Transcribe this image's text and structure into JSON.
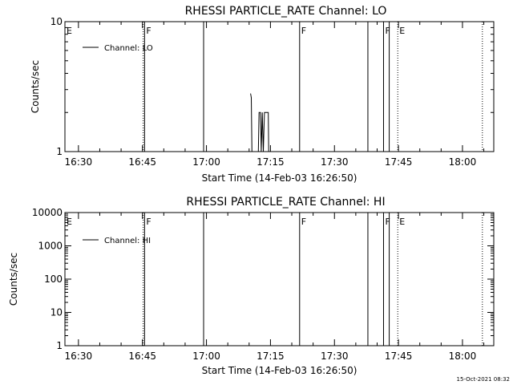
{
  "footer": {
    "timestamp": "15-Oct-2021 08:32"
  },
  "chart_data": [
    {
      "type": "line",
      "title": "RHESSI PARTICLE_RATE Channel: LO",
      "xlabel": "Start Time (14-Feb-03 16:26:50)",
      "ylabel": "Counts/sec",
      "yscale": "log",
      "ylim": [
        1,
        10
      ],
      "xlim": [
        "16:26:50",
        "18:07:20"
      ],
      "x_ticks": [
        "16:30",
        "16:45",
        "17:00",
        "17:15",
        "17:30",
        "17:45",
        "18:00"
      ],
      "y_ticks": [
        "1",
        "10"
      ],
      "legend": {
        "position": "top-left",
        "entries": [
          "Channel: LO"
        ]
      },
      "grid": false,
      "series": [
        {
          "name": "Channel: LO",
          "points": [
            [
              "17:10:20",
              2.8
            ],
            [
              "17:10:30",
              2.6
            ],
            [
              "17:10:40",
              1.0
            ],
            [
              "17:12:10",
              1.0
            ],
            [
              "17:12:20",
              2.0
            ],
            [
              "17:12:40",
              2.0
            ],
            [
              "17:12:50",
              1.0
            ],
            [
              "17:13:05",
              2.0
            ],
            [
              "17:13:20",
              1.0
            ],
            [
              "17:13:35",
              2.0
            ],
            [
              "17:14:30",
              2.0
            ],
            [
              "17:14:35",
              1.0
            ]
          ]
        }
      ],
      "markers": [
        {
          "time": "16:26:50",
          "label": "E",
          "style": "dotted"
        },
        {
          "time": "16:45:10",
          "label": "",
          "style": "dotted"
        },
        {
          "time": "16:45:30",
          "label": "F",
          "style": "solid"
        },
        {
          "time": "16:59:20",
          "label": "",
          "style": "solid"
        },
        {
          "time": "17:21:50",
          "label": "F",
          "style": "solid"
        },
        {
          "time": "17:37:50",
          "label": "",
          "style": "solid"
        },
        {
          "time": "17:41:30",
          "label": "F",
          "style": "solid"
        },
        {
          "time": "17:42:50",
          "label": "",
          "style": "solid"
        },
        {
          "time": "17:44:50",
          "label": "E",
          "style": "dotted"
        },
        {
          "time": "18:04:40",
          "label": "",
          "style": "dotted"
        }
      ]
    },
    {
      "type": "line",
      "title": "RHESSI PARTICLE_RATE Channel: HI",
      "xlabel": "Start Time (14-Feb-03 16:26:50)",
      "ylabel": "Counts/sec",
      "yscale": "log",
      "ylim": [
        1,
        10000
      ],
      "xlim": [
        "16:26:50",
        "18:07:20"
      ],
      "x_ticks": [
        "16:30",
        "16:45",
        "17:00",
        "17:15",
        "17:30",
        "17:45",
        "18:00"
      ],
      "y_ticks": [
        "1",
        "10",
        "100",
        "1000",
        "10000"
      ],
      "legend": {
        "position": "top-left",
        "entries": [
          "Channel: HI"
        ]
      },
      "grid": false,
      "series": [
        {
          "name": "Channel: HI",
          "points": []
        }
      ],
      "markers": [
        {
          "time": "16:26:50",
          "label": "E",
          "style": "dotted"
        },
        {
          "time": "16:45:10",
          "label": "",
          "style": "dotted"
        },
        {
          "time": "16:45:30",
          "label": "F",
          "style": "solid"
        },
        {
          "time": "16:59:20",
          "label": "",
          "style": "solid"
        },
        {
          "time": "17:21:50",
          "label": "F",
          "style": "solid"
        },
        {
          "time": "17:37:50",
          "label": "",
          "style": "solid"
        },
        {
          "time": "17:41:30",
          "label": "F",
          "style": "solid"
        },
        {
          "time": "17:42:50",
          "label": "",
          "style": "solid"
        },
        {
          "time": "17:44:50",
          "label": "E",
          "style": "dotted"
        },
        {
          "time": "18:04:40",
          "label": "",
          "style": "dotted"
        }
      ]
    }
  ]
}
